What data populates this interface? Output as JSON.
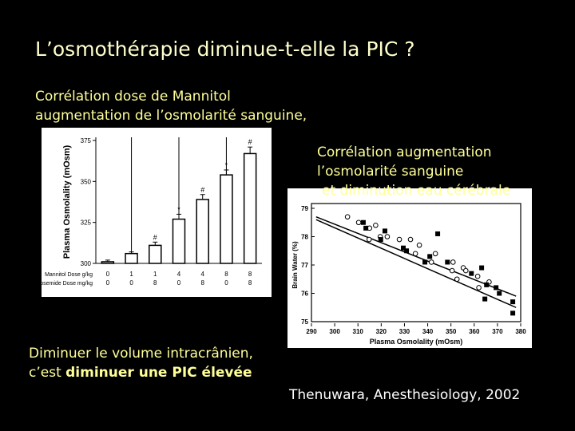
{
  "slide": {
    "title": "L’osmothérapie diminue-t-elle la PIC ?",
    "left_caption": [
      "Corrélation dose de Mannitol",
      "augmentation de l’osmolarité sanguine,"
    ],
    "right_caption": [
      "Corrélation augmentation",
      "l’osmolarité sanguine",
      "et diminution eau cérébrale"
    ],
    "conclusion": {
      "line1": "Diminuer le volume intracrânien,",
      "line2_start": "c’est",
      "line2_bold": "diminuer une PIC élevée"
    },
    "citation": "Thenuwara, Anesthesiology, 2002"
  },
  "chart_data": [
    {
      "type": "bar",
      "y_label": "Plasma Osmolality (mOsm)",
      "ylim": [
        300,
        375
      ],
      "yticks": [
        300,
        325,
        350,
        375
      ],
      "values": [
        301,
        306,
        311,
        327,
        339,
        354,
        367
      ],
      "errors": [
        1,
        1,
        2,
        3,
        3,
        3,
        4
      ],
      "annotations": [
        null,
        null,
        "#",
        "*",
        "#",
        "*",
        "#"
      ],
      "category_rows": [
        {
          "label": "Mannitol Dose g/kg",
          "values": [
            0,
            1,
            1,
            4,
            4,
            8,
            8
          ]
        },
        {
          "label": "Furosemide Dose mg/kg",
          "values": [
            0,
            0,
            8,
            0,
            8,
            0,
            8
          ]
        }
      ],
      "color": "#ffffff"
    },
    {
      "type": "scatter",
      "x_label": "Plasma Osmolality (mOsm)",
      "y_label": "Brain Water (%)",
      "xlim": [
        290,
        380
      ],
      "xticks": [
        290,
        300,
        310,
        320,
        330,
        340,
        350,
        360,
        370,
        380
      ],
      "ylim": [
        75,
        79
      ],
      "yticks": [
        75,
        76,
        77,
        78,
        79
      ],
      "series": [
        {
          "marker": "circle",
          "color": "#000000",
          "x": [
            305.5,
            310.3,
            315,
            314.8,
            317.6,
            319.6,
            322.6,
            327.8,
            332.6,
            334.7,
            336.4,
            343.3,
            341.6,
            350.9,
            352.6,
            355.3,
            356.4,
            361.5,
            366.4,
            362,
            350.5
          ],
          "values": [
            78.7,
            78.5,
            78.3,
            77.9,
            78.4,
            78.0,
            78.0,
            77.9,
            77.9,
            77.4,
            77.7,
            77.4,
            77.1,
            77.1,
            76.5,
            76.9,
            76.8,
            76.6,
            76.4,
            76.2,
            76.8
          ]
        },
        {
          "marker": "square",
          "color": "#000000",
          "x": [
            312.3,
            313.4,
            319.8,
            321.6,
            329.5,
            330.9,
            338.8,
            340.9,
            344.3,
            348.5,
            358.8,
            363.2,
            365.3,
            364.6,
            369.4,
            370.8,
            376.6,
            376.6
          ],
          "values": [
            78.5,
            78.3,
            77.9,
            78.2,
            77.6,
            77.5,
            77.1,
            77.3,
            78.1,
            77.1,
            76.7,
            76.9,
            76.3,
            75.8,
            76.2,
            76.0,
            75.7,
            75.3
          ]
        }
      ],
      "fit_lines": [
        {
          "x": [
            292,
            378
          ],
          "values": [
            78.7,
            75.9
          ]
        },
        {
          "x": [
            292,
            378
          ],
          "values": [
            78.6,
            75.5
          ]
        }
      ]
    }
  ]
}
